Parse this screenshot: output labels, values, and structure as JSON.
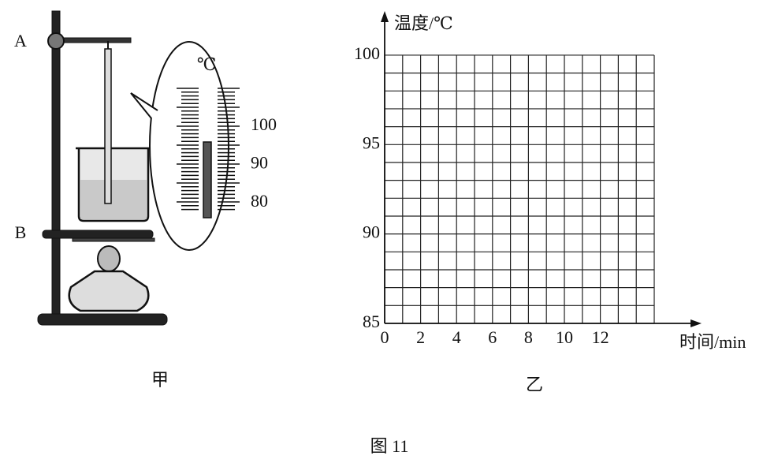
{
  "apparatus": {
    "label_a": "A",
    "label_b": "B",
    "caption": "甲"
  },
  "thermometer_scale": {
    "unit": "℃",
    "labels": [
      100,
      90,
      80
    ]
  },
  "graph": {
    "y_label": "温度/℃",
    "x_label": "时间/min",
    "caption": "乙",
    "yticks": [
      100,
      95,
      90,
      85
    ],
    "xticks": [
      0,
      2,
      4,
      6,
      8,
      10,
      12
    ]
  },
  "figure_caption": "图 11"
}
